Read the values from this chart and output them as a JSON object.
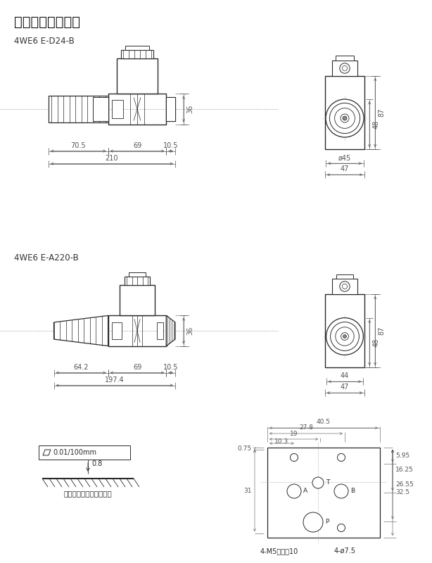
{
  "title": "》外形安装尺寸》",
  "title_bracket": "【外形安装尺寸】",
  "subtitle1": "4WE6 E-D24-B",
  "subtitle2": "4WE6 E-A220-B",
  "bg_color": "#ffffff",
  "line_color": "#2a2a2a",
  "dim_color": "#555555",
  "note_text": "要求配合部件表面精加工",
  "flatness": "0.01/100mm",
  "roughness": "0.8",
  "port_bolt": "4-M5有效深10",
  "port_hole": "4-ø7.5"
}
